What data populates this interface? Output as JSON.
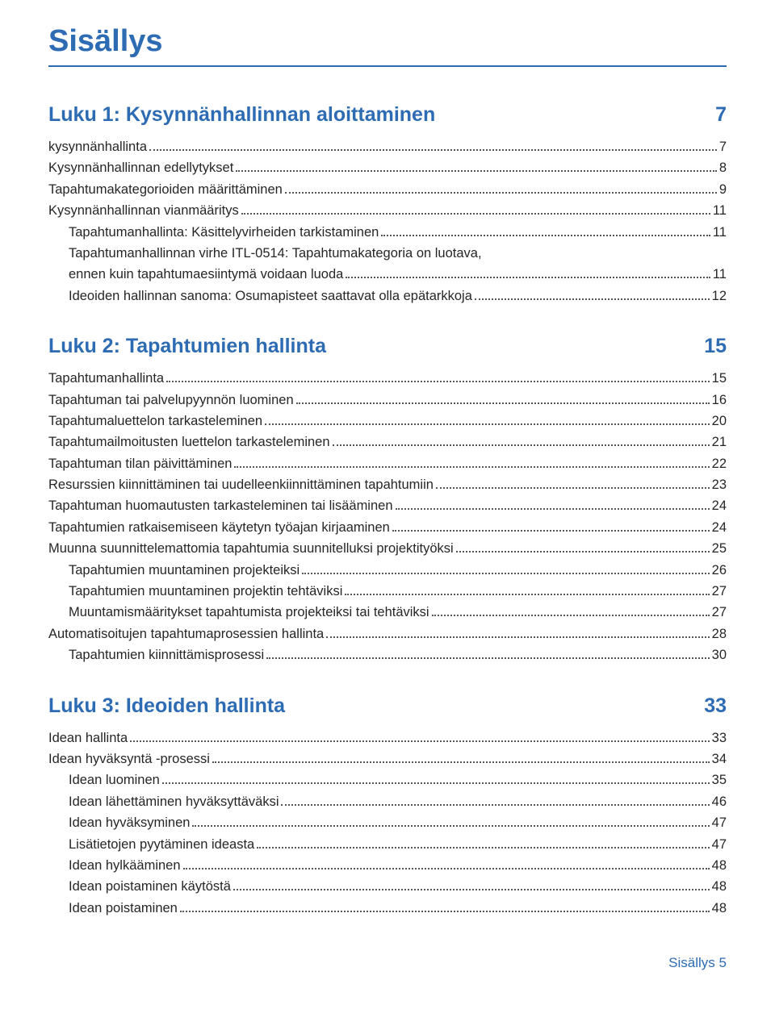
{
  "title": "Sisällys",
  "colors": {
    "accent": "#2d6bb3",
    "text": "#262626",
    "dot": "#555555",
    "background": "#ffffff"
  },
  "fonts": {
    "title_size_pt": 38,
    "chapter_size_pt": 25,
    "entry_size_pt": 16.5,
    "footer_size_pt": 17
  },
  "chapters": [
    {
      "title": "Luku 1: Kysynnänhallinnan aloittaminen",
      "page": "7",
      "entries": [
        {
          "label": "kysynnänhallinta",
          "page": "7",
          "indent": 0
        },
        {
          "label": "Kysynnänhallinnan edellytykset",
          "page": "8",
          "indent": 0
        },
        {
          "label": "Tapahtumakategorioiden määrittäminen",
          "page": "9",
          "indent": 0
        },
        {
          "label": "Kysynnänhallinnan vianmääritys",
          "page": "11",
          "indent": 0
        },
        {
          "label": "Tapahtumanhallinta: Käsittelyvirheiden tarkistaminen",
          "page": "11",
          "indent": 1
        },
        {
          "label": "Tapahtumanhallinnan virhe ITL-0514: Tapahtumakategoria on luotava, ennen kuin tapahtumaesiintymä voidaan luoda",
          "page": "11",
          "indent": 1
        },
        {
          "label": "Ideoiden hallinnan sanoma: Osumapisteet saattavat olla epätarkkoja",
          "page": "12",
          "indent": 1
        }
      ]
    },
    {
      "title": "Luku 2: Tapahtumien hallinta",
      "page": "15",
      "entries": [
        {
          "label": "Tapahtumanhallinta",
          "page": "15",
          "indent": 0
        },
        {
          "label": "Tapahtuman tai palvelupyynnön luominen",
          "page": "16",
          "indent": 0
        },
        {
          "label": "Tapahtumaluettelon tarkasteleminen",
          "page": "20",
          "indent": 0
        },
        {
          "label": "Tapahtumailmoitusten luettelon tarkasteleminen",
          "page": "21",
          "indent": 0
        },
        {
          "label": "Tapahtuman tilan päivittäminen",
          "page": "22",
          "indent": 0
        },
        {
          "label": "Resurssien kiinnittäminen tai uudelleenkiinnittäminen tapahtumiin",
          "page": "23",
          "indent": 0
        },
        {
          "label": "Tapahtuman huomautusten tarkasteleminen tai lisääminen",
          "page": "24",
          "indent": 0
        },
        {
          "label": "Tapahtumien ratkaisemiseen käytetyn työajan kirjaaminen",
          "page": "24",
          "indent": 0
        },
        {
          "label": "Muunna suunnittelemattomia tapahtumia suunnitelluksi projektityöksi",
          "page": "25",
          "indent": 0
        },
        {
          "label": "Tapahtumien muuntaminen projekteiksi",
          "page": "26",
          "indent": 1
        },
        {
          "label": "Tapahtumien muuntaminen projektin tehtäviksi",
          "page": "27",
          "indent": 1
        },
        {
          "label": "Muuntamismääritykset tapahtumista projekteiksi tai tehtäviksi",
          "page": "27",
          "indent": 1
        },
        {
          "label": "Automatisoitujen tapahtumaprosessien hallinta",
          "page": "28",
          "indent": 0
        },
        {
          "label": "Tapahtumien kiinnittämisprosessi",
          "page": "30",
          "indent": 1
        }
      ]
    },
    {
      "title": "Luku 3: Ideoiden hallinta",
      "page": "33",
      "entries": [
        {
          "label": "Idean hallinta",
          "page": "33",
          "indent": 0
        },
        {
          "label": "Idean hyväksyntä -prosessi",
          "page": "34",
          "indent": 0
        },
        {
          "label": "Idean luominen",
          "page": "35",
          "indent": 1
        },
        {
          "label": "Idean lähettäminen hyväksyttäväksi",
          "page": "46",
          "indent": 1
        },
        {
          "label": "Idean hyväksyminen",
          "page": "47",
          "indent": 1
        },
        {
          "label": "Lisätietojen pyytäminen ideasta",
          "page": "47",
          "indent": 1
        },
        {
          "label": "Idean hylkääminen",
          "page": "48",
          "indent": 1
        },
        {
          "label": "Idean poistaminen käytöstä",
          "page": "48",
          "indent": 1
        },
        {
          "label": "Idean poistaminen",
          "page": "48",
          "indent": 1
        }
      ]
    }
  ],
  "footer": {
    "label": "Sisällys",
    "page": "5"
  }
}
